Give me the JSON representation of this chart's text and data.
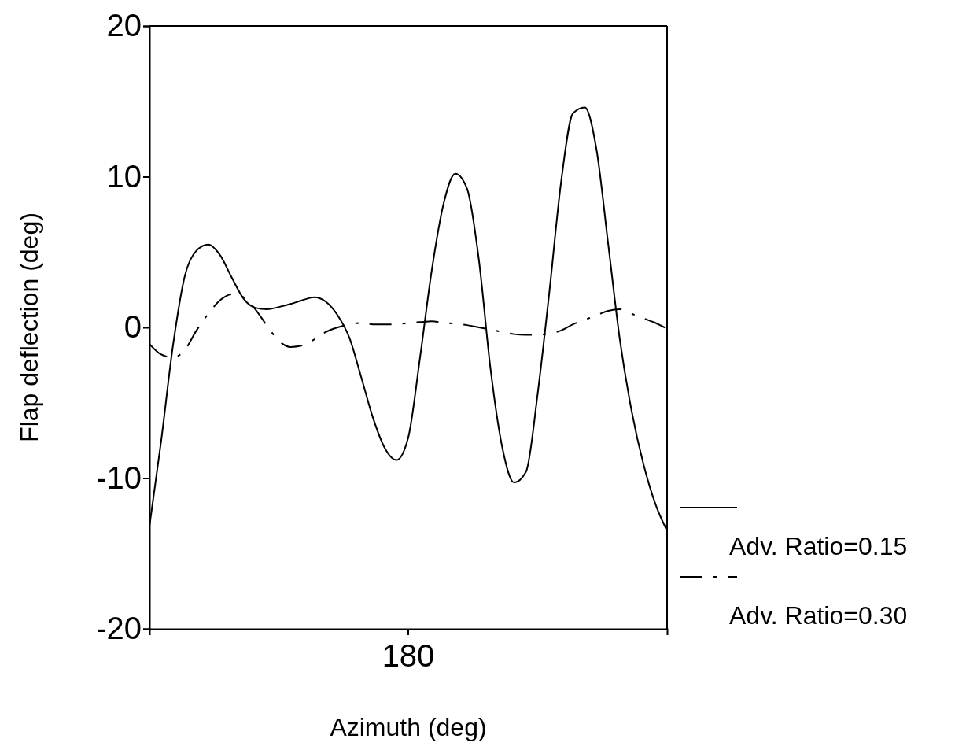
{
  "chart_data": {
    "type": "line",
    "xlabel": "Azimuth (deg)",
    "ylabel": "Flap deflection (deg)",
    "categories": [
      null,
      null,
      null,
      null,
      null,
      null,
      null,
      null,
      null,
      null,
      null,
      null,
      null,
      null,
      null,
      null,
      null,
      null,
      null,
      null,
      null,
      null,
      null,
      null,
      null,
      null,
      null,
      null,
      null,
      null,
      null,
      null,
      null,
      null,
      null,
      null,
      null,
      null,
      null,
      null,
      null,
      null,
      null,
      null,
      null
    ],
    "ylim": [
      -20,
      20
    ],
    "yticks": [
      -20,
      -10,
      0,
      10,
      20
    ],
    "grid": false,
    "legend": "bottom right",
    "marker": "none",
    "annotations": [
      "180"
    ],
    "series": [
      {
        "name": "Adv. Ratio=0.15",
        "color": "#000000",
        "line_style": "solid",
        "values": [
          -13.2,
          -7.5,
          -1.2,
          3.4,
          5.1,
          5.5,
          4.8,
          3.3,
          1.9,
          1.3,
          1.2,
          1.35,
          1.55,
          1.8,
          2.0,
          1.7,
          0.8,
          -0.7,
          -3.3,
          -6.0,
          -8.0,
          -8.8,
          -7.3,
          -2.0,
          3.8,
          8.2,
          10.2,
          9.2,
          4.5,
          -2.8,
          -8.0,
          -10.3,
          -9.6,
          -4.4,
          2.4,
          9.7,
          14.2,
          14.6,
          11.8,
          5.5,
          -0.9,
          -5.6,
          -9.1,
          -11.7,
          -13.5
        ]
      },
      {
        "name": "Adv. Ratio=0.30",
        "color": "#000000",
        "line_style": "dashed",
        "values": [
          -1.1,
          -1.8,
          -2.0,
          -1.5,
          -0.2,
          0.9,
          1.8,
          2.2,
          2.0,
          1.2,
          0.1,
          -0.9,
          -1.3,
          -1.2,
          -0.8,
          -0.3,
          0.0,
          0.2,
          0.3,
          0.2,
          0.2,
          0.2,
          0.3,
          0.35,
          0.4,
          0.3,
          0.25,
          0.15,
          0.0,
          -0.15,
          -0.3,
          -0.45,
          -0.5,
          -0.5,
          -0.4,
          -0.2,
          0.2,
          0.5,
          0.8,
          1.1,
          1.2,
          0.9,
          0.6,
          0.3,
          -0.1
        ]
      }
    ]
  }
}
